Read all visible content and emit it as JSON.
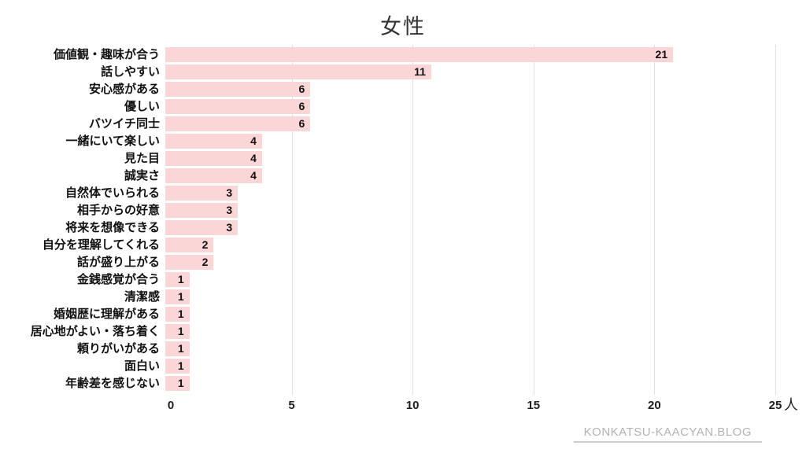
{
  "chart": {
    "title": "女性",
    "unit_label": "人",
    "footer": "KONKATSU-KAACYAN.BLOG",
    "colors": {
      "bar": "#fbd6d6",
      "gridline": "#e0e0e0",
      "text": "#111111",
      "footer_text": "#b3b3b3"
    }
  },
  "chart_data": {
    "type": "bar",
    "orientation": "horizontal",
    "title": "女性",
    "categories": [
      "価値観・趣味が合う",
      "話しやすい",
      "安心感がある",
      "優しい",
      "バツイチ同士",
      "一緒にいて楽しい",
      "見た目",
      "誠実さ",
      "自然体でいられる",
      "相手からの好意",
      "将来を想像できる",
      "自分を理解してくれる",
      "話が盛り上がる",
      "金銭感覚が合う",
      "清潔感",
      "婚姻歴に理解がある",
      "居心地がよい・落ち着く",
      "頼りがいがある",
      "面白い",
      "年齢差を感じない"
    ],
    "values": [
      21,
      11,
      6,
      6,
      6,
      4,
      4,
      4,
      3,
      3,
      3,
      2,
      2,
      1,
      1,
      1,
      1,
      1,
      1,
      1
    ],
    "xlabel": "人",
    "ylabel": "",
    "xlim": [
      0,
      25
    ],
    "xticks": [
      0,
      5,
      10,
      15,
      20,
      25
    ],
    "grid": true,
    "legend": false,
    "value_labels": "inside-end"
  }
}
